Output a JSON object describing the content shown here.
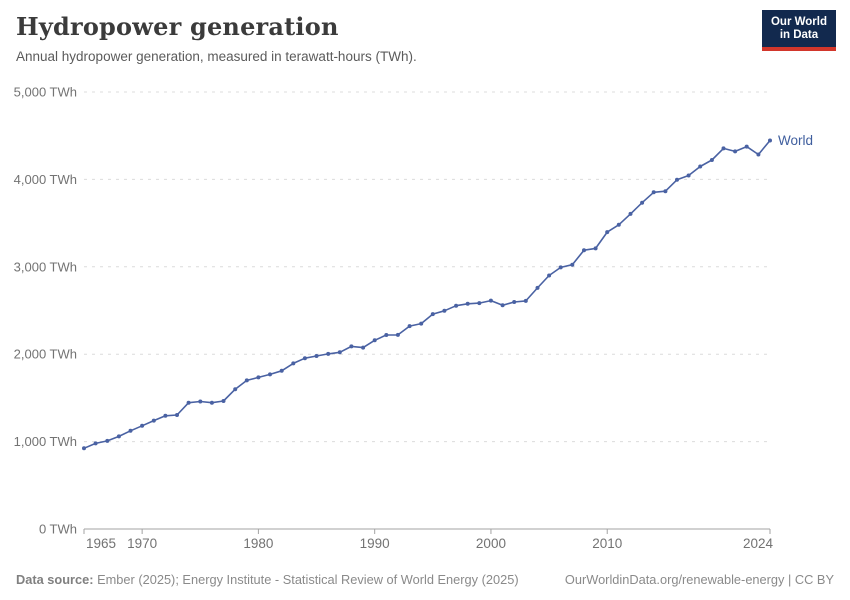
{
  "header": {
    "title": "Hydropower generation",
    "subtitle": "Annual hydropower generation, measured in terawatt-hours (TWh).",
    "logo": {
      "line1": "Our World",
      "line2": "in Data"
    }
  },
  "colors": {
    "line": "#4a62a3",
    "entity_label": "#3f5e9e",
    "gridline": "#dcdcdc",
    "axis_line": "#a3a3a3",
    "tick_label": "#737373",
    "title": "#3b3b3b",
    "subtitle": "#5b5b5b",
    "footer_text": "#8a8a8a",
    "logo_bg": "#12294e",
    "logo_red": "#d2362b",
    "background": "#ffffff"
  },
  "chart_data": {
    "type": "line",
    "title": "Hydropower generation",
    "subtitle": "Annual hydropower generation, measured in terawatt-hours (TWh).",
    "unit": "TWh",
    "xlim": [
      1965,
      2024
    ],
    "ylim": [
      0,
      5000
    ],
    "grid": "horizontal-dashed",
    "legend_position": "end-of-line label",
    "x_ticks": [
      1965,
      1970,
      1980,
      1990,
      2000,
      2010,
      2024
    ],
    "x_tick_labels": [
      "1965",
      "1970",
      "1980",
      "1990",
      "2000",
      "2010",
      "2024"
    ],
    "y_ticks": [
      0,
      1000,
      2000,
      3000,
      4000,
      5000
    ],
    "y_tick_labels": [
      "0 TWh",
      "1,000 TWh",
      "2,000 TWh",
      "3,000 TWh",
      "4,000 TWh",
      "5,000 TWh"
    ],
    "series": [
      {
        "name": "World",
        "color": "#4a62a3",
        "x": [
          1965,
          1966,
          1967,
          1968,
          1969,
          1970,
          1971,
          1972,
          1973,
          1974,
          1975,
          1976,
          1977,
          1978,
          1979,
          1980,
          1981,
          1982,
          1983,
          1984,
          1985,
          1986,
          1987,
          1988,
          1989,
          1990,
          1991,
          1992,
          1993,
          1994,
          1995,
          1996,
          1997,
          1998,
          1999,
          2000,
          2001,
          2002,
          2003,
          2004,
          2005,
          2006,
          2007,
          2008,
          2009,
          2010,
          2011,
          2012,
          2013,
          2014,
          2015,
          2016,
          2017,
          2018,
          2019,
          2020,
          2021,
          2022,
          2023,
          2024
        ],
        "values": [
          923,
          979,
          1008,
          1059,
          1123,
          1181,
          1240,
          1295,
          1304,
          1445,
          1459,
          1445,
          1465,
          1600,
          1700,
          1735,
          1769,
          1810,
          1895,
          1954,
          1979,
          2004,
          2022,
          2089,
          2076,
          2159,
          2220,
          2221,
          2321,
          2350,
          2459,
          2496,
          2555,
          2577,
          2585,
          2613,
          2560,
          2597,
          2610,
          2759,
          2900,
          2993,
          3024,
          3190,
          3210,
          3397,
          3480,
          3605,
          3733,
          3852,
          3865,
          3995,
          4045,
          4148,
          4222,
          4355,
          4320,
          4375,
          4285,
          4445
        ]
      }
    ]
  },
  "footer": {
    "source_label": "Data source:",
    "source_text": " Ember (2025); Energy Institute - Statistical Review of World Energy (2025)",
    "attribution": "OurWorldinData.org/renewable-energy | CC BY"
  }
}
